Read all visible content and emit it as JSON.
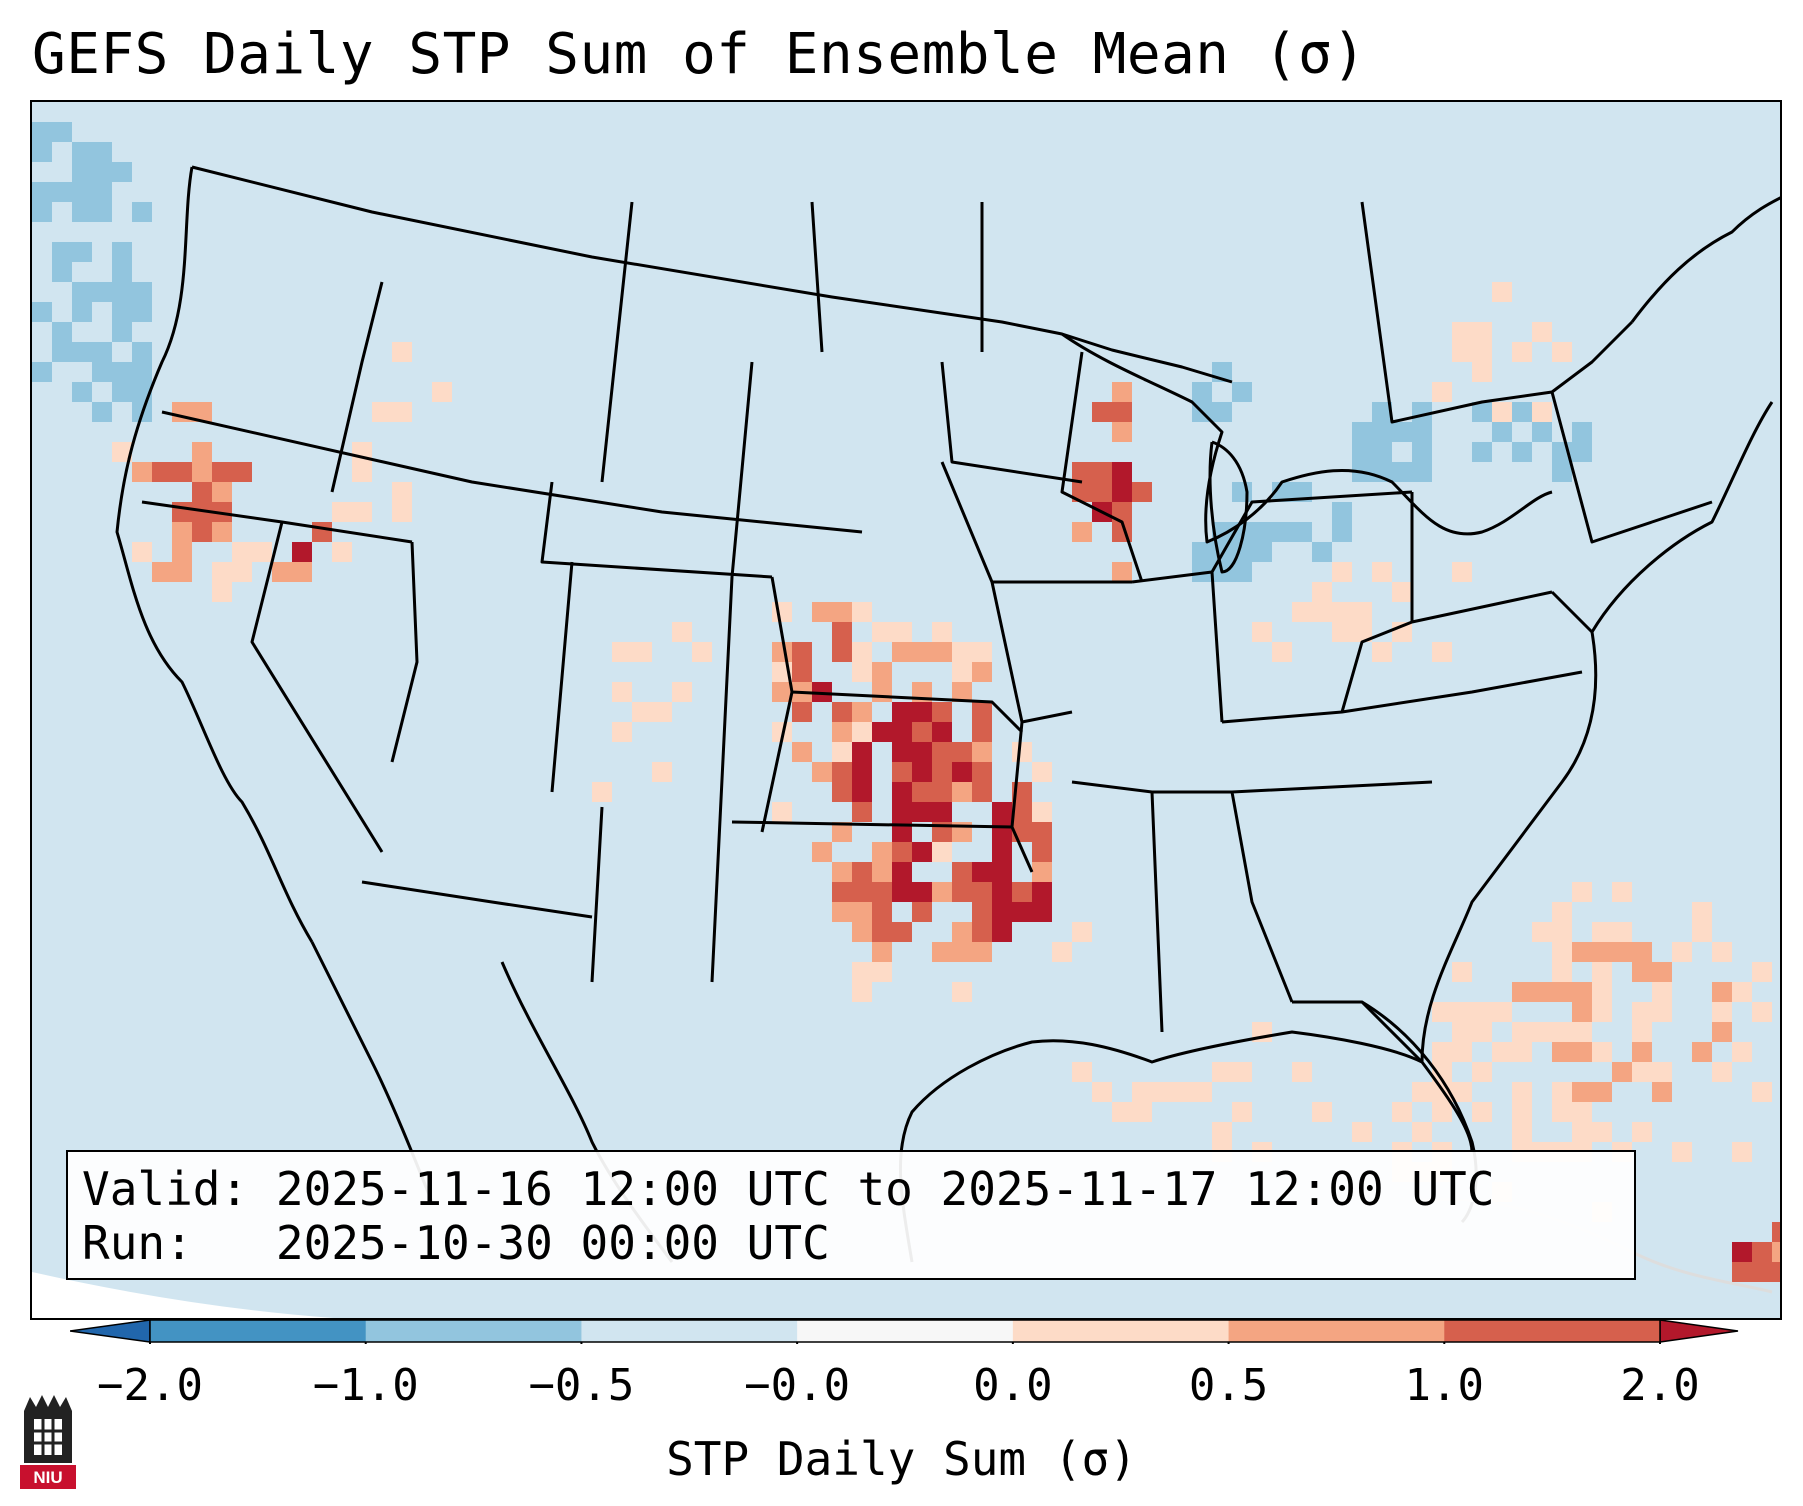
{
  "title": "GEFS Daily STP Sum of Ensemble Mean (σ)",
  "info": {
    "valid_label": "Valid:",
    "valid_value": "2025-11-16 12:00 UTC to 2025-11-17 12:00 UTC",
    "run_label": "Run:",
    "run_value": "2025-10-30 00:00 UTC"
  },
  "colorbar": {
    "label": "STP Daily Sum (σ)",
    "ticks": [
      "−2.0",
      "−1.0",
      "−0.5",
      "−0.0",
      "0.0",
      "0.5",
      "1.0",
      "2.0"
    ],
    "colors": {
      "under": "#2166ac",
      "bins": [
        "#4393c3",
        "#92c5de",
        "#d1e5f0",
        "#f7f7f7",
        "#fddbc7",
        "#f4a582",
        "#d6604d"
      ],
      "over": "#b2182b"
    },
    "extend": "both"
  },
  "map_fill": {
    "background_bin": "#d1e5f0",
    "regions": [
      "Southern Plains (TX/OK/KS): high values",
      "Upper Midwest (WI/upper MI): high values",
      "Northern California coast: moderate-high",
      "Northeast US / Pacific NW: slight negative"
    ]
  },
  "logo": {
    "text": "NIU"
  }
}
